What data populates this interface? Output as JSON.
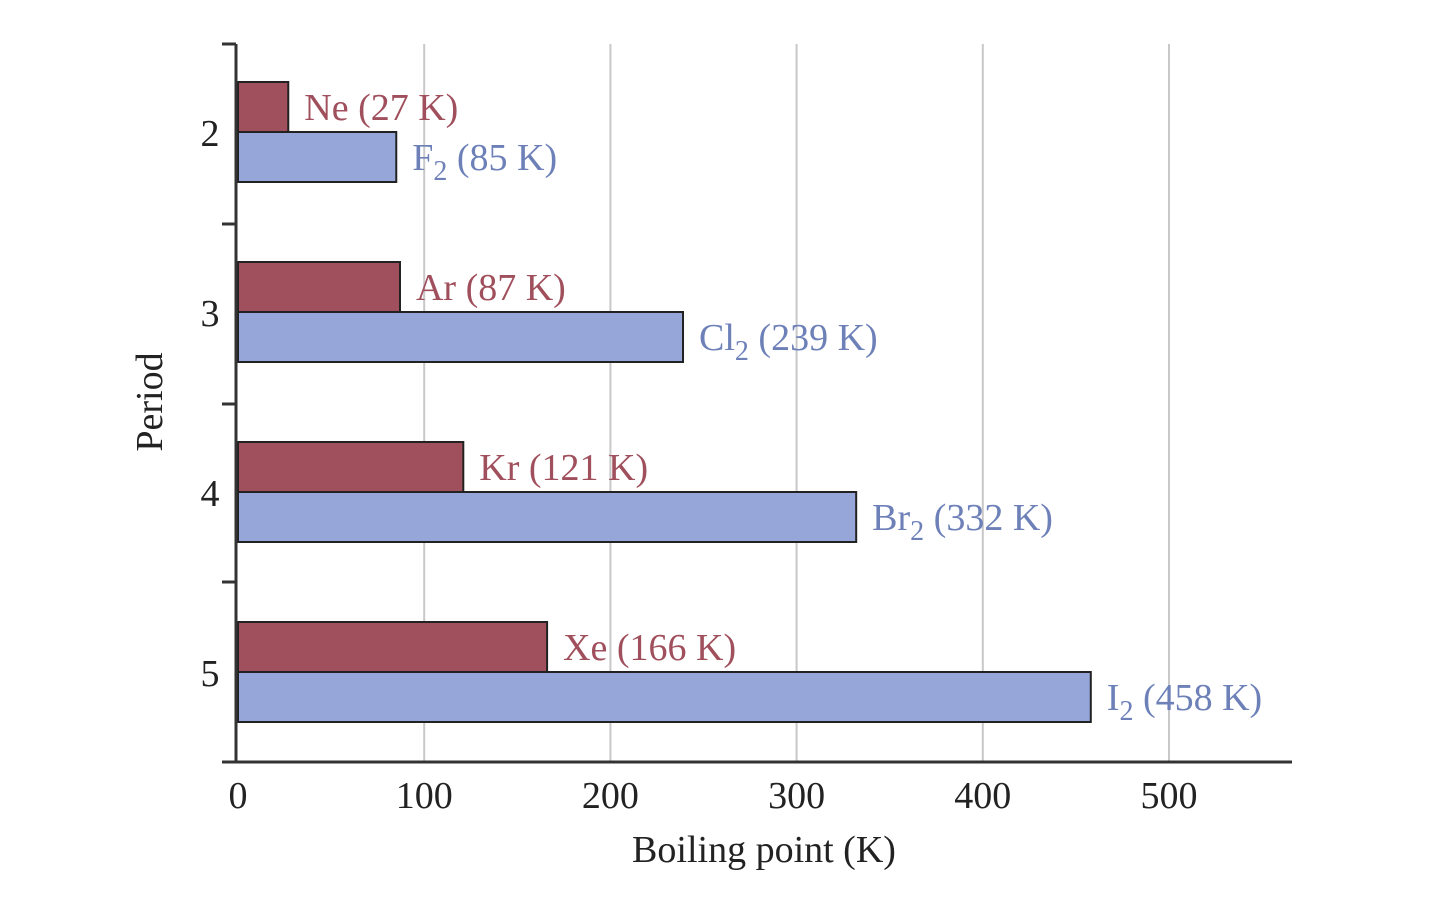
{
  "chart_data": {
    "type": "bar",
    "orientation": "horizontal",
    "title": "",
    "xlabel": "Boiling point (K)",
    "ylabel": "Period",
    "xlim": [
      0,
      560
    ],
    "xticks": [
      0,
      100,
      200,
      300,
      400,
      500
    ],
    "grid": "vertical",
    "legend": "none",
    "categories": [
      "2",
      "3",
      "4",
      "5"
    ],
    "series": [
      {
        "color": "#a0505c",
        "values": [
          27,
          87,
          121,
          166
        ],
        "labels": [
          {
            "text": "Ne (27 K)"
          },
          {
            "text": "Ar (87 K)"
          },
          {
            "text": "Kr (121 K)"
          },
          {
            "text": "Xe (166 K)"
          }
        ]
      },
      {
        "color": "#97a6d9",
        "label_color": "#6d80b8",
        "values": [
          85,
          239,
          332,
          458
        ],
        "labels": [
          {
            "text": "F",
            "sub": "2",
            "after": " (85 K)"
          },
          {
            "text": "Cl",
            "sub": "2",
            "after": " (239 K)"
          },
          {
            "text": "Br",
            "sub": "2",
            "after": " (332 K)"
          },
          {
            "text": "I",
            "sub": "2",
            "after": " (458 K)"
          }
        ]
      }
    ]
  }
}
